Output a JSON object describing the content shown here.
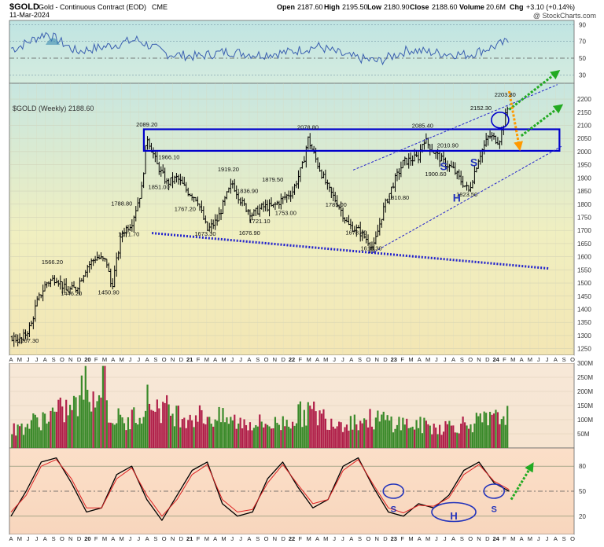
{
  "header": {
    "symbol": "$GOLD",
    "name": "Gold - Continuous Contract (EOD)",
    "exchange": "CME",
    "date": "11-Mar-2024",
    "open_label": "Open",
    "open": "2187.60",
    "high_label": "High",
    "high": "2195.50",
    "low_label": "Low",
    "low": "2180.90",
    "close_label": "Close",
    "close": "2188.60",
    "volume_label": "Volume",
    "volume": "20.6M",
    "chg_label": "Chg",
    "chg": "+3.10 (+0.14%)",
    "watermark": "@ StockCharts.com"
  },
  "main_panel_label": "$GOLD (Weekly) 2188.60",
  "colors": {
    "price_bars": "#000000",
    "channel_box": "#0000cc",
    "trendline": "#2222cc",
    "arrow_green": "#22aa22",
    "arrow_orange": "#ff9900",
    "vol_up": "#3a8a2a",
    "vol_down": "#b0204a",
    "stoch_k": "#000000",
    "stoch_d": "#dd2222"
  },
  "chart_data": [
    {
      "type": "line",
      "panel": "RSI",
      "y_ticks": [
        "90",
        "70",
        "50",
        "30"
      ],
      "ylim": [
        20,
        95
      ],
      "x": [
        2019.3,
        2019.6,
        2019.9,
        2020.2,
        2020.5,
        2020.8,
        2021.1,
        2021.4,
        2021.7,
        2022.0,
        2022.3,
        2022.6,
        2022.9,
        2023.2,
        2023.5,
        2023.8,
        2024.0,
        2024.2
      ],
      "values": [
        62,
        80,
        58,
        64,
        72,
        55,
        52,
        58,
        54,
        57,
        64,
        52,
        46,
        60,
        56,
        54,
        62,
        70
      ]
    },
    {
      "type": "candlestick",
      "panel": "price",
      "title": "$GOLD (Weekly) 2188.60",
      "y_ticks": [
        "2200",
        "2150",
        "2100",
        "2050",
        "2000",
        "1950",
        "1900",
        "1850",
        "1800",
        "1750",
        "1700",
        "1650",
        "1600",
        "1550",
        "1500",
        "1450",
        "1400",
        "1350",
        "1300",
        "1250"
      ],
      "ylim": [
        1225,
        2260
      ],
      "x_axis": {
        "months": [
          "A",
          "M",
          "J",
          "J",
          "A",
          "S",
          "O",
          "N",
          "D",
          "20",
          "F",
          "M",
          "A",
          "M",
          "J",
          "J",
          "A",
          "S",
          "O",
          "N",
          "D",
          "21",
          "F",
          "M",
          "A",
          "M",
          "J",
          "J",
          "A",
          "S",
          "O",
          "N",
          "D",
          "22",
          "F",
          "M",
          "A",
          "M",
          "J",
          "J",
          "A",
          "S",
          "O",
          "N",
          "D",
          "23",
          "F",
          "M",
          "A",
          "M",
          "J",
          "J",
          "A",
          "S",
          "O",
          "N",
          "D",
          "24",
          "F",
          "M",
          "A",
          "M",
          "J",
          "J",
          "A",
          "S",
          "O"
        ],
        "start": 2019.25,
        "end": 2024.83
      },
      "path_points": {
        "x": [
          2019.25,
          2019.35,
          2019.45,
          2019.5,
          2019.6,
          2019.7,
          2019.8,
          2019.9,
          2020.0,
          2020.1,
          2020.2,
          2020.25,
          2020.35,
          2020.45,
          2020.55,
          2020.6,
          2020.7,
          2020.8,
          2020.9,
          2021.0,
          2021.1,
          2021.2,
          2021.3,
          2021.4,
          2021.45,
          2021.55,
          2021.65,
          2021.75,
          2021.85,
          2021.95,
          2022.05,
          2022.15,
          2022.2,
          2022.3,
          2022.4,
          2022.5,
          2022.6,
          2022.7,
          2022.8,
          2022.85,
          2022.95,
          2023.05,
          2023.15,
          2023.3,
          2023.35,
          2023.45,
          2023.55,
          2023.65,
          2023.7,
          2023.8,
          2023.9,
          2024.0,
          2024.1,
          2024.2
        ],
        "values": [
          1295,
          1280,
          1340,
          1420,
          1500,
          1520,
          1470,
          1480,
          1560,
          1600,
          1580,
          1480,
          1690,
          1730,
          1860,
          2060,
          1950,
          1880,
          1900,
          1850,
          1820,
          1700,
          1740,
          1840,
          1880,
          1800,
          1760,
          1790,
          1790,
          1820,
          1850,
          1950,
          2050,
          1950,
          1860,
          1800,
          1720,
          1700,
          1660,
          1630,
          1780,
          1880,
          1960,
          1980,
          2050,
          2000,
          1960,
          1930,
          1900,
          1850,
          1980,
          2060,
          2040,
          2188
        ]
      },
      "annotations": [
        {
          "label": "1267.30",
          "x": 2019.42,
          "y": 1267.3
        },
        {
          "label": "1566.20",
          "x": 2019.66,
          "y": 1566.2
        },
        {
          "label": "1446.20",
          "x": 2019.85,
          "y": 1446.2
        },
        {
          "label": "1450.90",
          "x": 2020.22,
          "y": 1450.9
        },
        {
          "label": "1788.80",
          "x": 2020.35,
          "y": 1788.8
        },
        {
          "label": "1671.70",
          "x": 2020.42,
          "y": 1671.7
        },
        {
          "label": "2089.20",
          "x": 2020.6,
          "y": 2089.2
        },
        {
          "label": "1966.10",
          "x": 2020.82,
          "y": 1966.1
        },
        {
          "label": "1851.00",
          "x": 2020.72,
          "y": 1851.0
        },
        {
          "label": "1767.20",
          "x": 2020.98,
          "y": 1767.2
        },
        {
          "label": "1673.30",
          "x": 2021.18,
          "y": 1673.3
        },
        {
          "label": "1919.20",
          "x": 2021.41,
          "y": 1919.2
        },
        {
          "label": "1836.90",
          "x": 2021.6,
          "y": 1836.9
        },
        {
          "label": "1879.50",
          "x": 2021.85,
          "y": 1879.5
        },
        {
          "label": "1721.10",
          "x": 2021.72,
          "y": 1721.1
        },
        {
          "label": "1676.90",
          "x": 2021.62,
          "y": 1676.9
        },
        {
          "label": "1753.00",
          "x": 2021.98,
          "y": 1753.0
        },
        {
          "label": "2078.80",
          "x": 2022.2,
          "y": 2078.8
        },
        {
          "label": "1785.00",
          "x": 2022.48,
          "y": 1785.0
        },
        {
          "label": "1678.40",
          "x": 2022.68,
          "y": 1678.4
        },
        {
          "label": "1618.30",
          "x": 2022.83,
          "y": 1618.3
        },
        {
          "label": "1810.80",
          "x": 2023.1,
          "y": 1810.8
        },
        {
          "label": "2085.40",
          "x": 2023.34,
          "y": 2085.4
        },
        {
          "label": "2010.90",
          "x": 2023.59,
          "y": 2010.9
        },
        {
          "label": "1900.60",
          "x": 2023.47,
          "y": 1900.6
        },
        {
          "label": "1823.50",
          "x": 2023.78,
          "y": 1823.5
        },
        {
          "label": "2152.30",
          "x": 2023.92,
          "y": 2152.3
        },
        {
          "label": "2203.80",
          "x": 2024.16,
          "y": 2203.8
        }
      ],
      "pattern_labels": [
        {
          "label": "S",
          "x": 2023.55,
          "y": 1930
        },
        {
          "label": "S",
          "x": 2023.85,
          "y": 1945
        },
        {
          "label": "H",
          "x": 2023.68,
          "y": 1810
        }
      ]
    },
    {
      "type": "bar",
      "panel": "volume",
      "y_ticks": [
        "300M",
        "250M",
        "200M",
        "150M",
        "100M",
        "50M"
      ],
      "ylim": [
        0,
        300
      ],
      "description_units": "millions of contracts",
      "series_profile": {
        "x": [
          2019.3,
          2019.6,
          2019.9,
          2020.0,
          2020.2,
          2020.4,
          2020.6,
          2020.9,
          2021.2,
          2021.5,
          2021.9,
          2022.2,
          2022.5,
          2022.9,
          2023.2,
          2023.5,
          2023.9,
          2024.1,
          2024.2
        ],
        "values": [
          70,
          120,
          160,
          250,
          140,
          90,
          180,
          130,
          120,
          100,
          90,
          140,
          100,
          110,
          90,
          80,
          100,
          110,
          150
        ]
      }
    },
    {
      "type": "line",
      "panel": "stochastic",
      "y_ticks": [
        "80",
        "50",
        "20"
      ],
      "ylim": [
        0,
        100
      ],
      "series": [
        {
          "name": "",
          "values": [
            20,
            50,
            85,
            90,
            60,
            25,
            30,
            70,
            80,
            40,
            15,
            45,
            75,
            85,
            35,
            20,
            25,
            65,
            85,
            55,
            30,
            40,
            80,
            90,
            55,
            25,
            20,
            35,
            30,
            45,
            75,
            85,
            60,
            50
          ]
        },
        {
          "name": "",
          "values": [
            25,
            45,
            80,
            88,
            65,
            30,
            30,
            65,
            78,
            45,
            20,
            40,
            70,
            82,
            40,
            25,
            28,
            60,
            82,
            58,
            35,
            40,
            75,
            88,
            58,
            30,
            24,
            33,
            32,
            42,
            70,
            82,
            62,
            52
          ]
        }
      ],
      "pattern_labels": [
        {
          "label": "S",
          "x": 2023.05,
          "y": 40
        },
        {
          "label": "H",
          "x": 2023.65,
          "y": 20
        },
        {
          "label": "S",
          "x": 2024.05,
          "y": 40
        }
      ]
    }
  ]
}
